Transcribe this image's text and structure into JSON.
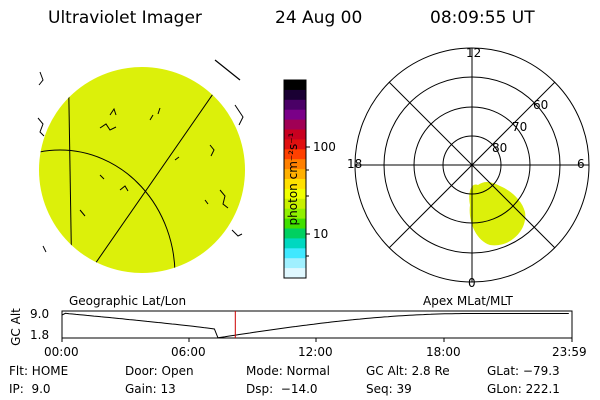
{
  "header": {
    "instrument": "Ultraviolet Imager",
    "date": "24 Aug 00",
    "time": "08:09:55 UT"
  },
  "colorbar": {
    "unit_label": "photon cm⁻²s⁻¹",
    "ticks": [
      "100",
      "10"
    ],
    "colors_top_to_bottom": [
      "#000000",
      "#1a0033",
      "#4a0066",
      "#7a0088",
      "#a00055",
      "#c80020",
      "#e01010",
      "#ff4000",
      "#ff8000",
      "#ffb000",
      "#ffe000",
      "#f0ff00",
      "#c8f000",
      "#90f000",
      "#40e000",
      "#00d060",
      "#00d8c0",
      "#40e8ff",
      "#a0f0ff",
      "#e0f8ff"
    ]
  },
  "left_panel": {
    "caption": "Geographic Lat/Lon",
    "fill_color": "#dcf00a"
  },
  "right_panel": {
    "caption": "Apex MLat/MLT",
    "mlt_labels": {
      "top": "12",
      "left": "18",
      "right": "6",
      "bottom": "0"
    },
    "mlat_labels": [
      "60",
      "70",
      "80"
    ],
    "fill_color": "#dcf00a"
  },
  "timeline": {
    "y_axis_title": "GC Alt",
    "y_ticks": [
      "9.0",
      "1.8"
    ],
    "x_ticks": [
      "00:00",
      "06:00",
      "12:00",
      "18:00",
      "23:59"
    ],
    "marker_time": "08:09",
    "marker_color": "#cc0000"
  },
  "info": {
    "row1": [
      "Flt: HOME",
      "Door: Open",
      "Mode: Normal",
      "GC Alt: 2.8 Re",
      "GLat: −79.3"
    ],
    "row2": [
      "IP:  9.0",
      "Gain: 13",
      "Dsp:  −14.0",
      "Seq: 39",
      "GLon: 222.1"
    ]
  }
}
